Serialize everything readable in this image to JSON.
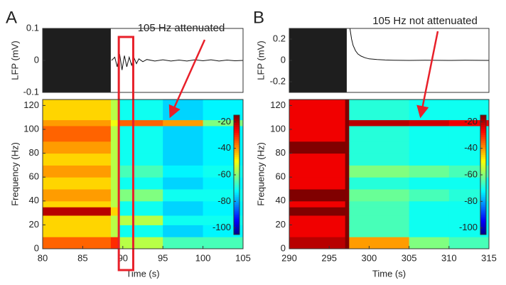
{
  "chart_data": [
    {
      "type": "line",
      "panel_label": "A",
      "ylabel": "LFP (mV)",
      "annotation": "105 Hz attenuated",
      "xlim": [
        80,
        105
      ],
      "ylim": [
        -0.1,
        0.1
      ],
      "yticks": [
        -0.1,
        0,
        0.1
      ],
      "color": "#111111",
      "artifact_span": [
        80,
        88.5
      ],
      "x": [
        88.6,
        89,
        89.3,
        89.6,
        89.9,
        90.2,
        90.5,
        90.8,
        91.1,
        91.4,
        91.7,
        92,
        92.5,
        93,
        94,
        95,
        96,
        97,
        98,
        99,
        100,
        101,
        102,
        103,
        104,
        105
      ],
      "values": [
        0,
        0.01,
        -0.02,
        0.02,
        -0.03,
        0.015,
        -0.02,
        0.01,
        -0.015,
        0.008,
        -0.01,
        0.005,
        -0.004,
        0.003,
        -0.002,
        0.002,
        -0.002,
        0.001,
        -0.002,
        0.002,
        -0.001,
        0.002,
        -0.002,
        0.001,
        -0.001,
        0
      ]
    },
    {
      "type": "heatmap",
      "xlabel": "Time (s)",
      "ylabel": "Frequency (Hz)",
      "colormap": "jet",
      "xlim": [
        80,
        105
      ],
      "xticks": [
        80,
        85,
        90,
        95,
        100,
        105
      ],
      "ylim": [
        0,
        125
      ],
      "yticks": [
        0,
        20,
        40,
        60,
        80,
        100,
        120
      ],
      "clim": [
        -105,
        -15
      ],
      "cticks": [
        -20,
        -40,
        -60,
        -80,
        -100
      ],
      "highlight_x": [
        89.5,
        91.3
      ],
      "highlight_color": "#e8202a",
      "x_edges": [
        80,
        88.5,
        89.5,
        95,
        100,
        105
      ],
      "y_edges": [
        0,
        10,
        20,
        28,
        35,
        40,
        50,
        60,
        70,
        80,
        90,
        100,
        103,
        108,
        125
      ],
      "z": [
        [
          -35,
          -45,
          -45,
          -20,
          -45,
          -40,
          -45,
          -40,
          -45,
          -40,
          -35,
          -35,
          -40,
          -45
        ],
        [
          -30,
          -55,
          -55,
          -45,
          -55,
          -55,
          -55,
          -55,
          -55,
          -55,
          -55,
          -55,
          -50,
          -55
        ],
        [
          -55,
          -70,
          -55,
          -70,
          -70,
          -60,
          -70,
          -65,
          -70,
          -70,
          -70,
          -70,
          -35,
          -70
        ],
        [
          -65,
          -75,
          -70,
          -75,
          -75,
          -70,
          -75,
          -72,
          -75,
          -75,
          -75,
          -75,
          -40,
          -75
        ],
        [
          -65,
          -72,
          -70,
          -72,
          -72,
          -70,
          -72,
          -70,
          -72,
          -72,
          -72,
          -72,
          -60,
          -72
        ]
      ]
    },
    {
      "type": "line",
      "panel_label": "B",
      "ylabel": "LFP (mV)",
      "annotation": "105 Hz not attenuated",
      "xlim": [
        290,
        315
      ],
      "ylim": [
        -0.3,
        0.3
      ],
      "yticks": [
        -0.2,
        0,
        0.2
      ],
      "color": "#111111",
      "artifact_span": [
        290,
        297.2
      ],
      "x": [
        297.6,
        297.8,
        298,
        298.3,
        298.6,
        299,
        299.5,
        300,
        301,
        302,
        303,
        305,
        307,
        310,
        312,
        315
      ],
      "values": [
        0.3,
        0.2,
        0.14,
        0.09,
        0.06,
        0.04,
        0.025,
        0.015,
        0.008,
        0.004,
        0.002,
        0,
        0.001,
        0,
        0.001,
        0
      ]
    },
    {
      "type": "heatmap",
      "xlabel": "Time (s)",
      "ylabel": "Frequency (Hz)",
      "colormap": "jet",
      "xlim": [
        290,
        315
      ],
      "xticks": [
        290,
        295,
        300,
        305,
        310,
        315
      ],
      "ylim": [
        0,
        125
      ],
      "yticks": [
        0,
        20,
        40,
        60,
        80,
        100,
        120
      ],
      "clim": [
        -105,
        -15
      ],
      "cticks": [
        -20,
        -40,
        -60,
        -80,
        -100
      ],
      "x_edges": [
        290,
        297,
        297.5,
        305,
        310,
        315
      ],
      "y_edges": [
        0,
        10,
        20,
        28,
        35,
        40,
        50,
        60,
        70,
        80,
        90,
        100,
        103,
        108,
        125
      ],
      "z": [
        [
          -20,
          -25,
          -25,
          -15,
          -25,
          -15,
          -25,
          -25,
          -25,
          -15,
          -25,
          -25,
          -25,
          -25
        ],
        [
          -15,
          -15,
          -15,
          -15,
          -15,
          -15,
          -15,
          -15,
          -15,
          -15,
          -15,
          -15,
          -15,
          -15
        ],
        [
          -40,
          -65,
          -65,
          -65,
          -65,
          -62,
          -68,
          -60,
          -68,
          -68,
          -68,
          -68,
          -20,
          -68
        ],
        [
          -60,
          -70,
          -70,
          -70,
          -70,
          -65,
          -70,
          -62,
          -70,
          -70,
          -70,
          -70,
          -22,
          -70
        ],
        [
          -65,
          -70,
          -70,
          -70,
          -70,
          -68,
          -70,
          -65,
          -70,
          -70,
          -70,
          -70,
          -25,
          -70
        ]
      ]
    }
  ]
}
